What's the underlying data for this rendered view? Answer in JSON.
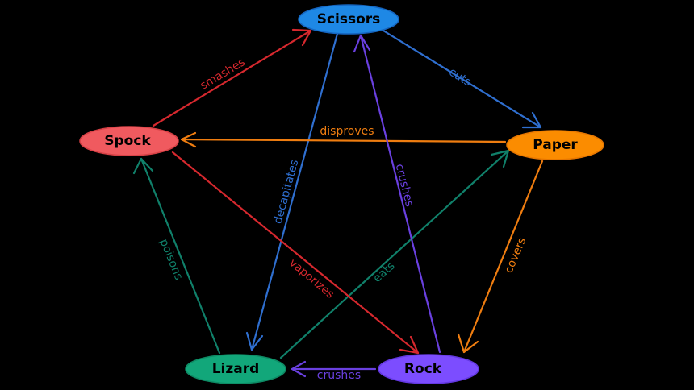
{
  "nodes": {
    "scissors": {
      "label": "Scissors",
      "color": "#1e88e5"
    },
    "paper": {
      "label": "Paper",
      "color": "#fb8c00"
    },
    "rock": {
      "label": "Rock",
      "color": "#7c4dff"
    },
    "lizard": {
      "label": "Lizard",
      "color": "#12a77a"
    },
    "spock": {
      "label": "Spock",
      "color": "#f05a5f"
    }
  },
  "edges": {
    "scissors_cuts_paper": {
      "label": "cuts",
      "color": "#2f6fd0"
    },
    "paper_covers_rock": {
      "label": "covers",
      "color": "#ef7d10"
    },
    "rock_crushes_lizard": {
      "label": "crushes",
      "color": "#6a40e0"
    },
    "lizard_poisons_spock": {
      "label": "poisons",
      "color": "#10806a"
    },
    "spock_smashes_scissors": {
      "label": "smashes",
      "color": "#d6282e"
    },
    "scissors_decapitates_lizard": {
      "label": "decapitates",
      "color": "#2f6fd0"
    },
    "lizard_eats_paper": {
      "label": "eats",
      "color": "#10806a"
    },
    "paper_disproves_spock": {
      "label": "disproves",
      "color": "#ef7d10"
    },
    "spock_vaporizes_rock": {
      "label": "vaporizes",
      "color": "#d6282e"
    },
    "rock_crushes_scissors": {
      "label": "crushes",
      "color": "#6a40e0"
    }
  }
}
